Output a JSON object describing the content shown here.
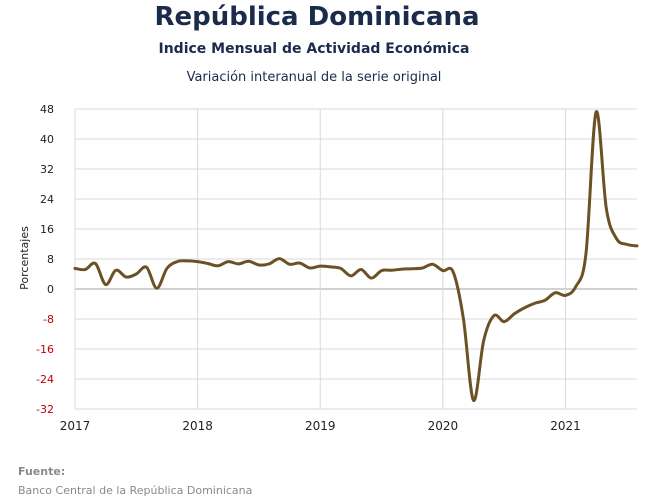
{
  "header": {
    "title": "República Dominicana",
    "subtitle": "Indice Mensual de  Actividad Económica",
    "subsubtitle": "Variación interanual de la serie original"
  },
  "footer": {
    "source_label": "Fuente:",
    "source_text": "Banco Central de la República Dominicana"
  },
  "colors": {
    "line": "#6b5225",
    "grid": "#d9d9d9",
    "zero_line": "#a6a6a6",
    "negative_tick": "#c00000",
    "positive_tick": "#222222",
    "title": "#1b2b4b"
  },
  "chart_data": {
    "type": "line",
    "title": "",
    "xlabel": "",
    "ylabel": "Porcentajes",
    "ylim": [
      -32,
      48
    ],
    "yticks": [
      48,
      40,
      32,
      24,
      16,
      8,
      0,
      -8,
      -16,
      -24,
      -32
    ],
    "xlim": [
      "2017-01",
      "2021-08"
    ],
    "xticks": [
      "2017",
      "2018",
      "2019",
      "2020",
      "2021"
    ],
    "grid": "vertical and horizontal",
    "series": [
      {
        "x": [
          "2017-01",
          "2017-02",
          "2017-03",
          "2017-04",
          "2017-05",
          "2017-06",
          "2017-07",
          "2017-08",
          "2017-09",
          "2017-10",
          "2017-11",
          "2017-12",
          "2018-01",
          "2018-02",
          "2018-03",
          "2018-04",
          "2018-05",
          "2018-06",
          "2018-07",
          "2018-08",
          "2018-09",
          "2018-10",
          "2018-11",
          "2018-12",
          "2019-01",
          "2019-02",
          "2019-03",
          "2019-04",
          "2019-05",
          "2019-06",
          "2019-07",
          "2019-08",
          "2019-09",
          "2019-10",
          "2019-11",
          "2019-12",
          "2020-01",
          "2020-02",
          "2020-03",
          "2020-04",
          "2020-05",
          "2020-06",
          "2020-07",
          "2020-08",
          "2020-09",
          "2020-10",
          "2020-11",
          "2020-12",
          "2021-01",
          "2021-02",
          "2021-03",
          "2021-04",
          "2021-05",
          "2021-06",
          "2021-07",
          "2021-08"
        ],
        "values": [
          5.5,
          5.2,
          6.8,
          1.2,
          5.0,
          3.2,
          4.0,
          5.8,
          0.2,
          5.5,
          7.3,
          7.5,
          7.3,
          6.8,
          6.2,
          7.3,
          6.7,
          7.4,
          6.4,
          6.7,
          8.1,
          6.6,
          6.9,
          5.6,
          6.1,
          5.9,
          5.5,
          3.5,
          5.2,
          2.9,
          4.9,
          5.0,
          5.3,
          5.4,
          5.6,
          6.6,
          4.9,
          4.6,
          -7.7,
          -29.7,
          -13.7,
          -7.1,
          -8.7,
          -6.6,
          -5.0,
          -3.8,
          -3.0,
          -1.0,
          -1.7,
          0.6,
          9.3,
          47.2,
          21.4,
          13.4,
          11.9,
          11.5
        ]
      }
    ]
  }
}
